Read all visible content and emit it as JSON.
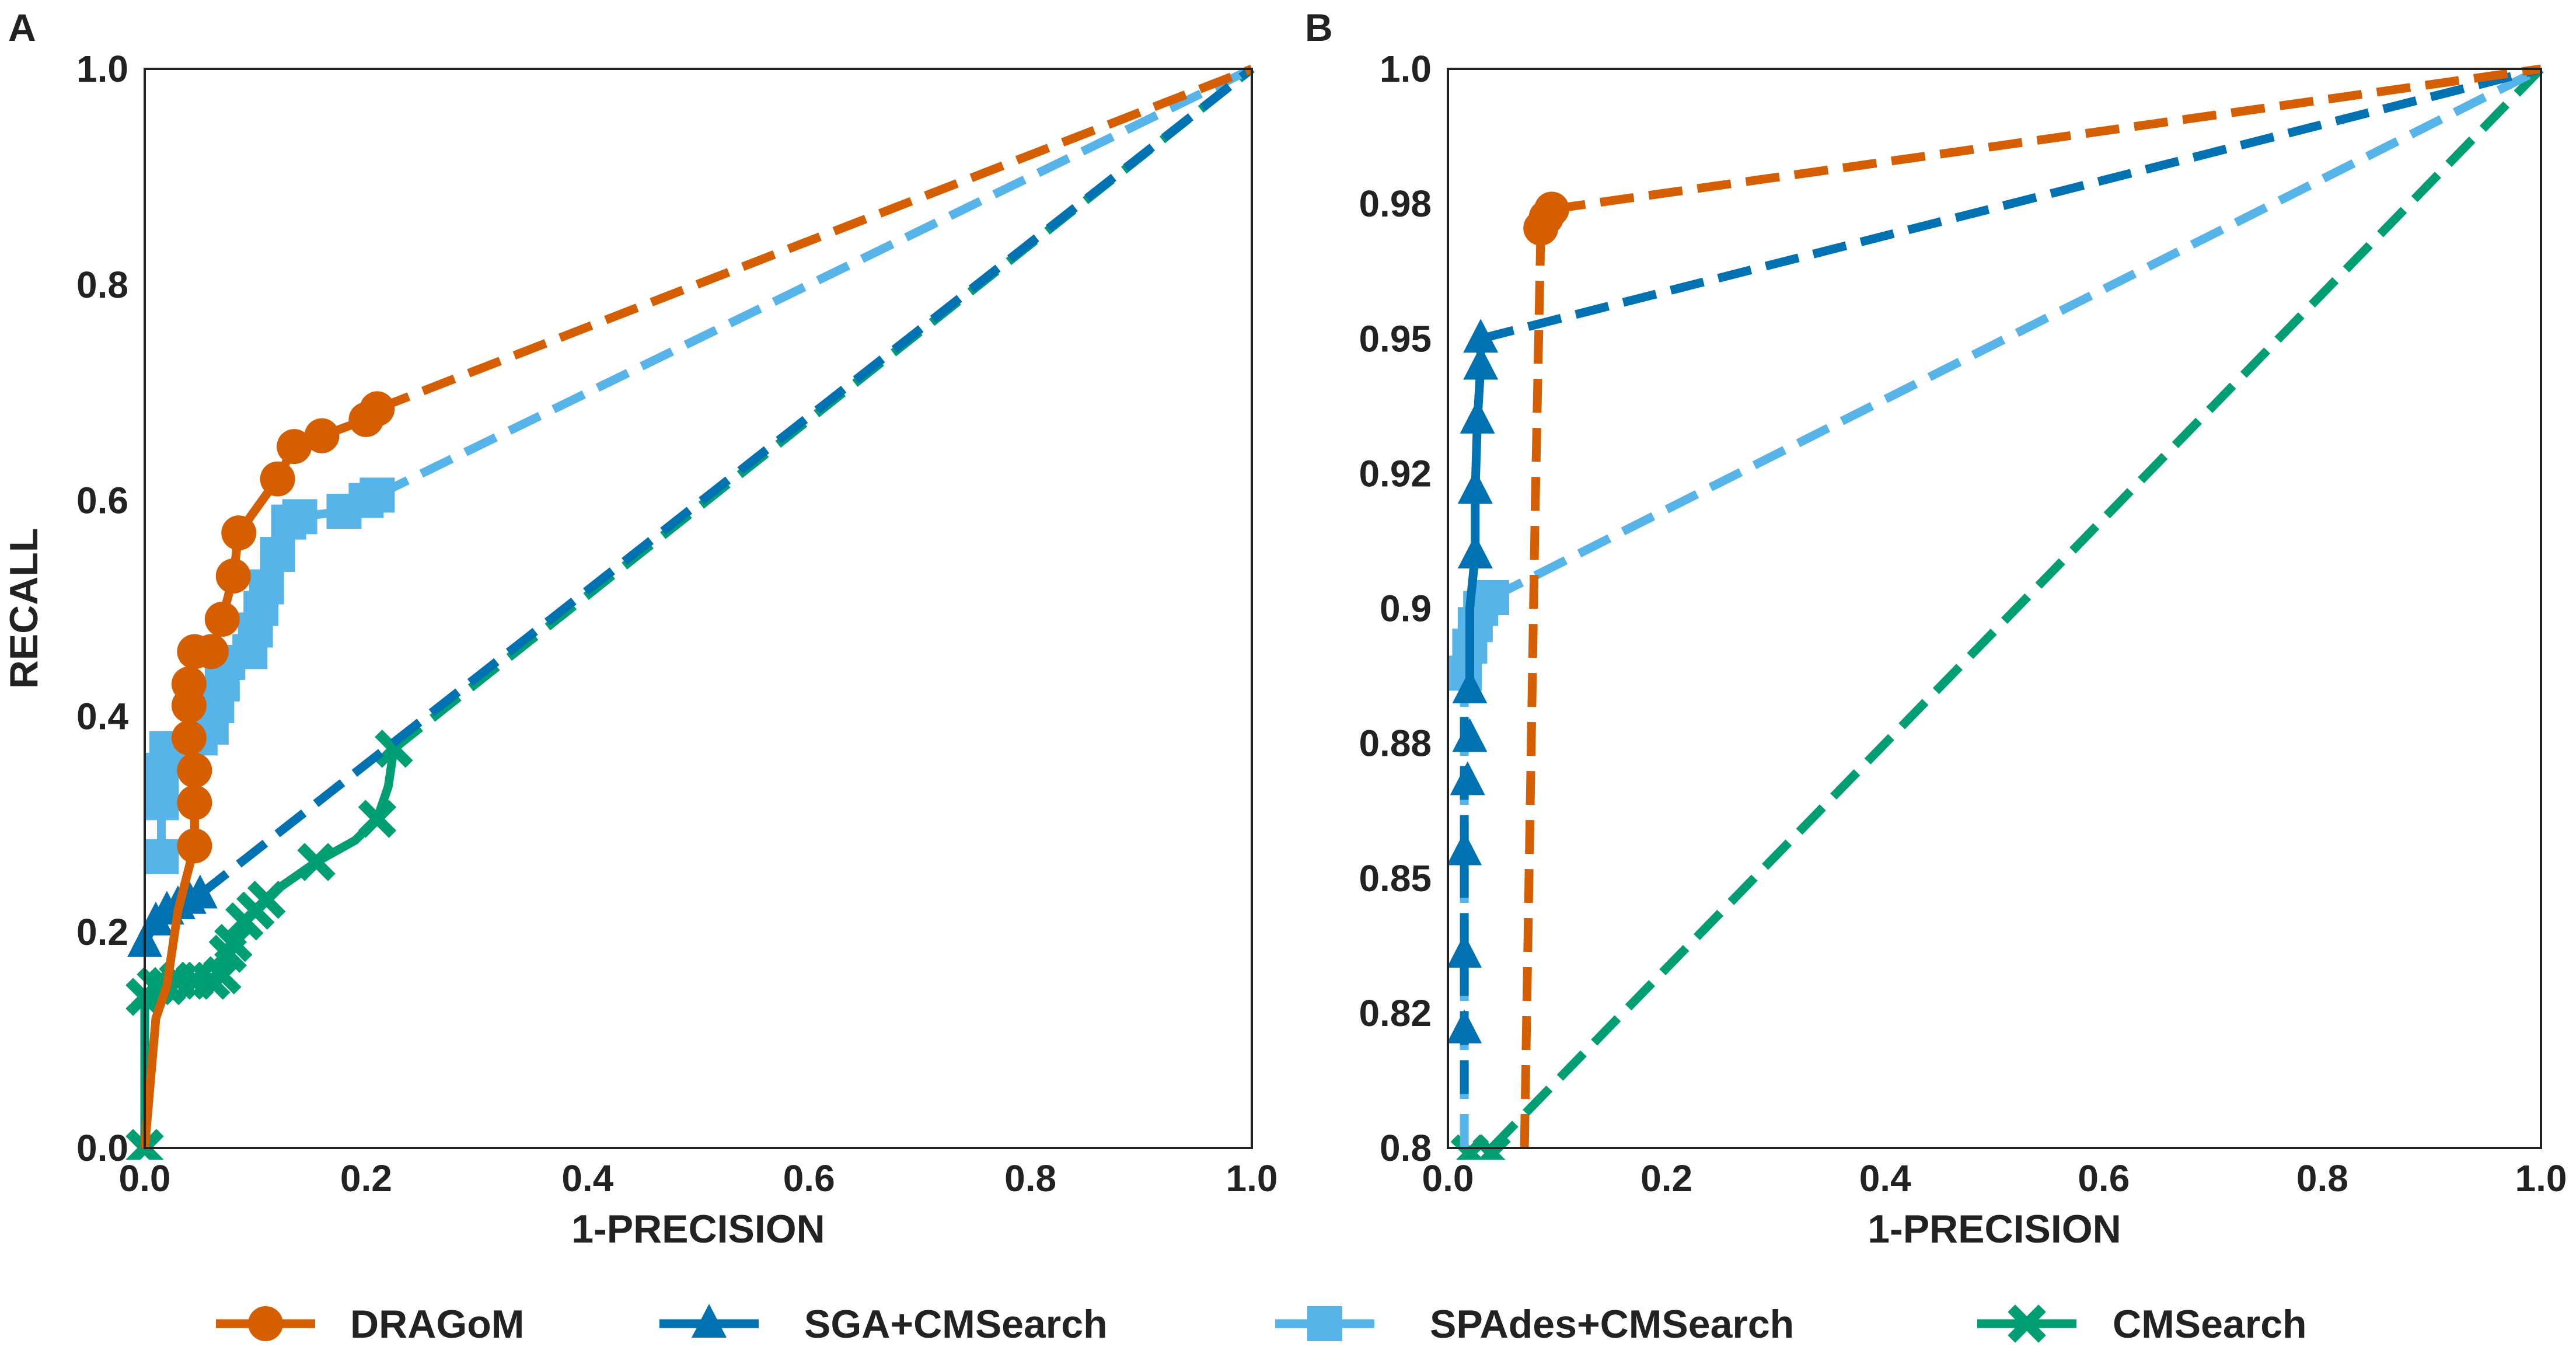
{
  "colors": {
    "dragom": "#D55E00",
    "sga": "#0072B2",
    "spades": "#56B4E9",
    "cmsearch": "#009E73",
    "frame": "#222222",
    "text": "#222222"
  },
  "legend": {
    "position": "bottom-center",
    "entries": [
      {
        "key": "dragom",
        "label": "DRAGoM",
        "marker": "circle",
        "color": "#D55E00"
      },
      {
        "key": "sga",
        "label": "SGA+CMSearch",
        "marker": "triangle",
        "color": "#0072B2"
      },
      {
        "key": "spades",
        "label": "SPAdes+CMSearch",
        "marker": "square",
        "color": "#56B4E9"
      },
      {
        "key": "cmsearch",
        "label": "CMSearch",
        "marker": "x",
        "color": "#009E73"
      }
    ]
  },
  "chart_data": [
    {
      "panel": "A",
      "type": "line",
      "xlabel": "1-PRECISION",
      "ylabel": "RECALL",
      "xlim": [
        0.0,
        1.0
      ],
      "ylim": [
        0.0,
        1.0
      ],
      "xticks": [
        "0.0",
        "0.2",
        "0.4",
        "0.6",
        "0.8",
        "1.0"
      ],
      "xtick_values": [
        0.0,
        0.2,
        0.4,
        0.6,
        0.8,
        1.0
      ],
      "yticks": [
        "0.0",
        "0.2",
        "0.4",
        "0.6",
        "0.8",
        "1.0"
      ],
      "ytick_values": [
        0.0,
        0.2,
        0.4,
        0.6,
        0.8,
        1.0
      ],
      "grid": false,
      "series": [
        {
          "key": "dragom",
          "name": "DRAGoM",
          "solid": [
            [
              0.0,
              0.0
            ],
            [
              0.01,
              0.12
            ],
            [
              0.02,
              0.15
            ],
            [
              0.03,
              0.22
            ],
            [
              0.04,
              0.26
            ],
            [
              0.045,
              0.28
            ],
            [
              0.045,
              0.32
            ],
            [
              0.045,
              0.35
            ],
            [
              0.04,
              0.38
            ],
            [
              0.04,
              0.41
            ],
            [
              0.04,
              0.43
            ],
            [
              0.045,
              0.46
            ],
            [
              0.06,
              0.46
            ],
            [
              0.07,
              0.49
            ],
            [
              0.08,
              0.53
            ],
            [
              0.085,
              0.57
            ],
            [
              0.12,
              0.62
            ],
            [
              0.135,
              0.65
            ],
            [
              0.16,
              0.66
            ],
            [
              0.2,
              0.675
            ],
            [
              0.21,
              0.685
            ]
          ],
          "markers": [
            [
              0.045,
              0.28
            ],
            [
              0.045,
              0.32
            ],
            [
              0.045,
              0.35
            ],
            [
              0.04,
              0.38
            ],
            [
              0.04,
              0.41
            ],
            [
              0.04,
              0.43
            ],
            [
              0.045,
              0.46
            ],
            [
              0.06,
              0.46
            ],
            [
              0.07,
              0.49
            ],
            [
              0.08,
              0.53
            ],
            [
              0.085,
              0.57
            ],
            [
              0.12,
              0.62
            ],
            [
              0.135,
              0.65
            ],
            [
              0.16,
              0.66
            ],
            [
              0.2,
              0.675
            ],
            [
              0.21,
              0.685
            ]
          ],
          "dashed": [
            [
              0.21,
              0.685
            ],
            [
              1.0,
              1.0
            ]
          ]
        },
        {
          "key": "sga",
          "name": "SGA+CMSearch",
          "solid": [
            [
              0.0,
              0.19
            ],
            [
              0.01,
              0.21
            ],
            [
              0.02,
              0.22
            ],
            [
              0.03,
              0.225
            ],
            [
              0.04,
              0.23
            ],
            [
              0.05,
              0.235
            ]
          ],
          "markers": [
            [
              0.0,
              0.19
            ],
            [
              0.01,
              0.21
            ],
            [
              0.02,
              0.22
            ],
            [
              0.03,
              0.225
            ],
            [
              0.04,
              0.23
            ],
            [
              0.05,
              0.235
            ]
          ],
          "dashed": [
            [
              0.05,
              0.235
            ],
            [
              1.0,
              1.0
            ]
          ]
        },
        {
          "key": "spades",
          "name": "SPAdes+CMSearch",
          "solid": [
            [
              0.015,
              0.27
            ],
            [
              0.015,
              0.32
            ],
            [
              0.015,
              0.35
            ],
            [
              0.02,
              0.37
            ],
            [
              0.03,
              0.37
            ],
            [
              0.05,
              0.38
            ],
            [
              0.06,
              0.39
            ],
            [
              0.065,
              0.41
            ],
            [
              0.07,
              0.43
            ],
            [
              0.075,
              0.45
            ],
            [
              0.095,
              0.46
            ],
            [
              0.1,
              0.48
            ],
            [
              0.105,
              0.5
            ],
            [
              0.11,
              0.52
            ],
            [
              0.12,
              0.55
            ],
            [
              0.13,
              0.58
            ],
            [
              0.14,
              0.585
            ],
            [
              0.18,
              0.59
            ],
            [
              0.2,
              0.6
            ],
            [
              0.21,
              0.605
            ]
          ],
          "markers": [
            [
              0.015,
              0.27
            ],
            [
              0.015,
              0.32
            ],
            [
              0.015,
              0.35
            ],
            [
              0.02,
              0.37
            ],
            [
              0.03,
              0.37
            ],
            [
              0.05,
              0.38
            ],
            [
              0.06,
              0.39
            ],
            [
              0.065,
              0.41
            ],
            [
              0.07,
              0.43
            ],
            [
              0.075,
              0.45
            ],
            [
              0.095,
              0.46
            ],
            [
              0.1,
              0.48
            ],
            [
              0.105,
              0.5
            ],
            [
              0.11,
              0.52
            ],
            [
              0.12,
              0.55
            ],
            [
              0.13,
              0.58
            ],
            [
              0.14,
              0.585
            ],
            [
              0.18,
              0.59
            ],
            [
              0.2,
              0.6
            ],
            [
              0.21,
              0.605
            ]
          ],
          "dashed": [
            [
              0.21,
              0.605
            ],
            [
              1.0,
              1.0
            ]
          ]
        },
        {
          "key": "cmsearch",
          "name": "CMSearch",
          "solid": [
            [
              0.0,
              0.0
            ],
            [
              0.0,
              0.14
            ],
            [
              0.01,
              0.15
            ],
            [
              0.02,
              0.15
            ],
            [
              0.03,
              0.155
            ],
            [
              0.045,
              0.155
            ],
            [
              0.06,
              0.155
            ],
            [
              0.07,
              0.16
            ],
            [
              0.075,
              0.18
            ],
            [
              0.08,
              0.19
            ],
            [
              0.09,
              0.21
            ],
            [
              0.1,
              0.22
            ],
            [
              0.11,
              0.23
            ],
            [
              0.12,
              0.24
            ],
            [
              0.155,
              0.265
            ],
            [
              0.19,
              0.285
            ],
            [
              0.21,
              0.305
            ],
            [
              0.22,
              0.335
            ],
            [
              0.225,
              0.37
            ]
          ],
          "markers": [
            [
              0.0,
              0.0
            ],
            [
              0.0,
              0.14
            ],
            [
              0.01,
              0.15
            ],
            [
              0.02,
              0.15
            ],
            [
              0.03,
              0.155
            ],
            [
              0.045,
              0.155
            ],
            [
              0.06,
              0.155
            ],
            [
              0.07,
              0.16
            ],
            [
              0.075,
              0.18
            ],
            [
              0.08,
              0.19
            ],
            [
              0.09,
              0.21
            ],
            [
              0.1,
              0.22
            ],
            [
              0.11,
              0.23
            ],
            [
              0.155,
              0.265
            ],
            [
              0.21,
              0.305
            ],
            [
              0.225,
              0.37
            ]
          ],
          "dashed": [
            [
              0.225,
              0.37
            ],
            [
              1.0,
              1.0
            ]
          ]
        }
      ]
    },
    {
      "panel": "B",
      "type": "line",
      "xlabel": "1-PRECISION",
      "ylabel": "",
      "xlim": [
        0.0,
        1.0
      ],
      "ylim": [
        0.8,
        1.0
      ],
      "xticks": [
        "0.0",
        "0.2",
        "0.4",
        "0.6",
        "0.8",
        "1.0"
      ],
      "xtick_values": [
        0.0,
        0.2,
        0.4,
        0.6,
        0.8,
        1.0
      ],
      "yticks": [
        "0.8",
        "0.82",
        "0.85",
        "0.88",
        "0.9",
        "0.92",
        "0.95",
        "0.98",
        "1.0"
      ],
      "ytick_values": [
        0.8,
        0.825,
        0.85,
        0.875,
        0.9,
        0.925,
        0.95,
        0.975,
        1.0
      ],
      "grid": false,
      "series": [
        {
          "key": "dragom",
          "name": "DRAGoM",
          "solid": [
            [
              0.085,
              0.9705
            ],
            [
              0.09,
              0.9725
            ],
            [
              0.095,
              0.974
            ]
          ],
          "markers": [
            [
              0.085,
              0.9705
            ],
            [
              0.09,
              0.9725
            ],
            [
              0.095,
              0.974
            ]
          ],
          "dashed": [
            [
              0.07,
              0.8
            ],
            [
              0.075,
              0.86
            ],
            [
              0.08,
              0.92
            ],
            [
              0.085,
              0.97
            ]
          ],
          "dashed_end": [
            [
              0.095,
              0.974
            ],
            [
              1.0,
              1.0
            ]
          ]
        },
        {
          "key": "sga",
          "name": "SGA+CMSearch",
          "solid": [
            [
              0.02,
              0.885
            ],
            [
              0.02,
              0.9
            ],
            [
              0.025,
              0.91
            ],
            [
              0.025,
              0.922
            ],
            [
              0.027,
              0.935
            ],
            [
              0.03,
              0.945
            ],
            [
              0.03,
              0.95
            ]
          ],
          "markers": [
            [
              0.015,
              0.822
            ],
            [
              0.015,
              0.836
            ],
            [
              0.015,
              0.855
            ],
            [
              0.018,
              0.868
            ],
            [
              0.02,
              0.876
            ],
            [
              0.02,
              0.885
            ],
            [
              0.025,
              0.91
            ],
            [
              0.025,
              0.922
            ],
            [
              0.027,
              0.935
            ],
            [
              0.03,
              0.945
            ],
            [
              0.03,
              0.95
            ]
          ],
          "dashed": [
            [
              0.015,
              0.81
            ],
            [
              0.015,
              0.885
            ]
          ],
          "dashed_end": [
            [
              0.03,
              0.95
            ],
            [
              1.0,
              1.0
            ]
          ]
        },
        {
          "key": "spades",
          "name": "SPAdes+CMSearch",
          "solid": [
            [
              0.015,
              0.888
            ],
            [
              0.02,
              0.893
            ],
            [
              0.025,
              0.897
            ],
            [
              0.03,
              0.9
            ],
            [
              0.04,
              0.902
            ]
          ],
          "markers": [
            [
              0.015,
              0.888
            ],
            [
              0.02,
              0.893
            ],
            [
              0.025,
              0.897
            ],
            [
              0.03,
              0.9
            ],
            [
              0.04,
              0.902
            ]
          ],
          "dashed": [
            [
              0.015,
              0.8
            ],
            [
              0.015,
              0.888
            ]
          ],
          "dashed_end": [
            [
              0.04,
              0.902
            ],
            [
              1.0,
              1.0
            ]
          ]
        },
        {
          "key": "cmsearch",
          "name": "CMSearch",
          "solid": [],
          "markers": [
            [
              0.02,
              0.799
            ],
            [
              0.04,
              0.799
            ]
          ],
          "dashed": [],
          "dashed_end": [
            [
              0.04,
              0.8
            ],
            [
              1.0,
              1.0
            ]
          ]
        }
      ]
    }
  ]
}
